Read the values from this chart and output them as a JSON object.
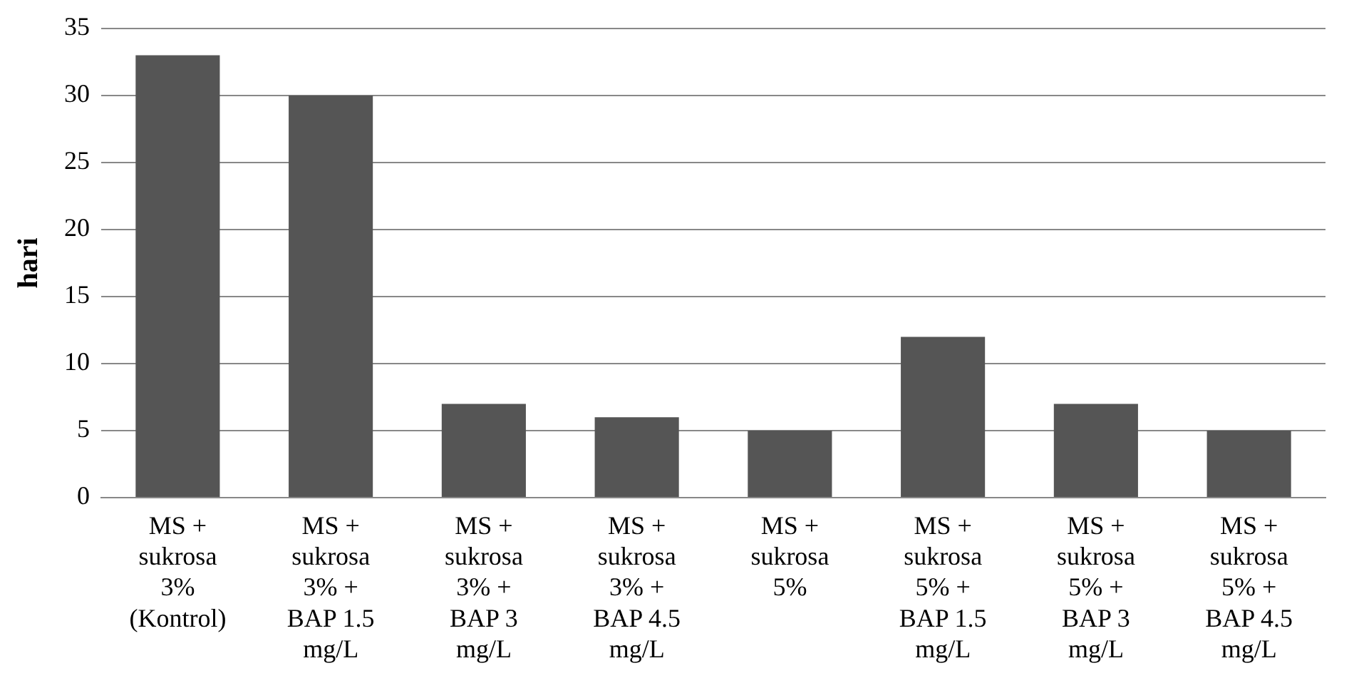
{
  "chart_data": {
    "type": "bar",
    "ylabel": "hari",
    "categories": [
      "MS + sukrosa 3% (Kontrol)",
      "MS + sukrosa 3% + BAP 1.5 mg/L",
      "MS + sukrosa 3% + BAP 3 mg/L",
      "MS + sukrosa 3% + BAP 4.5 mg/L",
      "MS + sukrosa 5%",
      "MS + sukrosa 5% + BAP 1.5 mg/L",
      "MS + sukrosa 5% + BAP 3 mg/L",
      "MS + sukrosa 5% + BAP 4.5 mg/L"
    ],
    "values": [
      33,
      30,
      7,
      6,
      5,
      12,
      7,
      5
    ],
    "color": "#555555",
    "ylim": [
      0,
      35
    ],
    "yticks": [
      0,
      5,
      10,
      15,
      20,
      25,
      30,
      35
    ],
    "grid": "y",
    "legend": false
  }
}
